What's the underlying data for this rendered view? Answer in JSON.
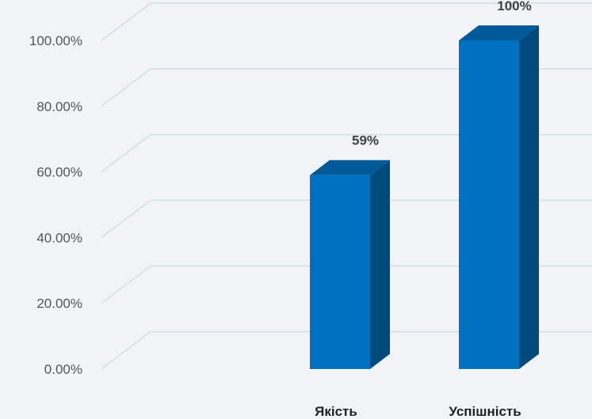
{
  "chart_data": {
    "type": "bar",
    "style": "3d-column",
    "categories": [
      "Якість",
      "Успішність"
    ],
    "values": [
      59,
      100
    ],
    "data_labels": [
      "59%",
      "100%"
    ],
    "y_tick_labels": [
      "0.00%",
      "20.00%",
      "40.00%",
      "60.00%",
      "80.00%",
      "100.00%"
    ],
    "ylim": [
      0,
      100
    ],
    "grid": true,
    "legend": "none",
    "colors": {
      "front": "#0070c0",
      "side": "#004a7c",
      "top": "#005a99",
      "grid": "#d6dde2",
      "background": "#f0f4f6"
    }
  }
}
